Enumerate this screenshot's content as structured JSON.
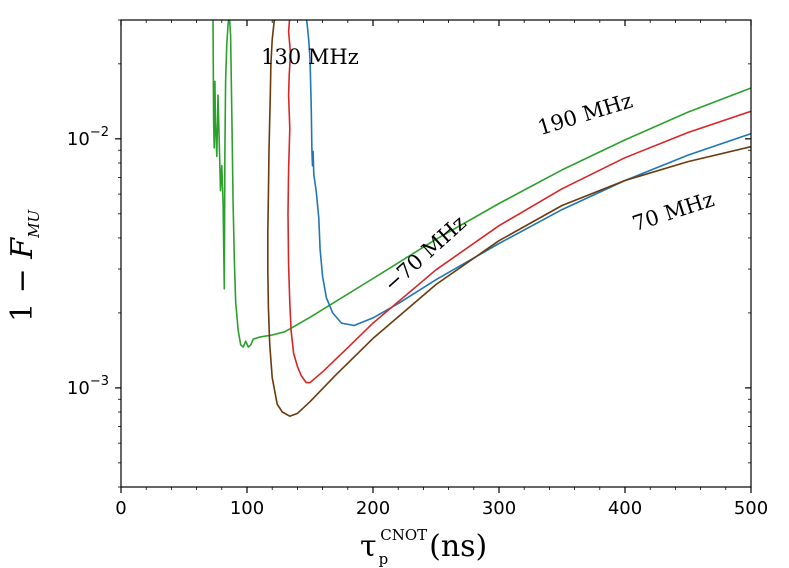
{
  "chart_data": {
    "type": "line",
    "xlabel": {
      "main": "τ",
      "sub": "p",
      "sup": "CNOT",
      "unit": "(ns)"
    },
    "ylabel": {
      "prefix": "1 − ",
      "var": "F",
      "sub": "MU"
    },
    "xlim": [
      0,
      500
    ],
    "ylim": [
      0.0004,
      0.03
    ],
    "yscale": "log",
    "x_ticks": [
      0,
      100,
      200,
      300,
      400,
      500
    ],
    "x_tick_labels": [
      "0",
      "100",
      "200",
      "300",
      "400",
      "500"
    ],
    "y_ticks": [
      0.001,
      0.01
    ],
    "y_tick_labels": [
      {
        "base": "10",
        "exp": "−3"
      },
      {
        "base": "10",
        "exp": "−2"
      }
    ],
    "grid": false,
    "series": [
      {
        "name": "190 MHz",
        "color": "#2ca02c",
        "label_at": [
          370,
          0.0118
        ],
        "label_rotation": -17,
        "points": [
          [
            73,
            0.031
          ],
          [
            73.5,
            0.012
          ],
          [
            74,
            0.0092
          ],
          [
            74.5,
            0.017
          ],
          [
            75,
            0.0115
          ],
          [
            76,
            0.0085
          ],
          [
            77,
            0.015
          ],
          [
            78,
            0.0095
          ],
          [
            79,
            0.0062
          ],
          [
            80,
            0.0078
          ],
          [
            81,
            0.0055
          ],
          [
            82,
            0.0025
          ],
          [
            82.5,
            0.009
          ],
          [
            83,
            0.017
          ],
          [
            84,
            0.024
          ],
          [
            85,
            0.029
          ],
          [
            86,
            0.031
          ],
          [
            87,
            0.026
          ],
          [
            88,
            0.012
          ],
          [
            89,
            0.0055
          ],
          [
            90,
            0.0032
          ],
          [
            91,
            0.0022
          ],
          [
            93,
            0.0017
          ],
          [
            95,
            0.00149
          ],
          [
            97,
            0.00146
          ],
          [
            99,
            0.00154
          ],
          [
            101,
            0.00146
          ],
          [
            103,
            0.00149
          ],
          [
            105,
            0.00157
          ],
          [
            110,
            0.0016
          ],
          [
            120,
            0.00163
          ],
          [
            130,
            0.00168
          ],
          [
            150,
            0.00192
          ],
          [
            200,
            0.00275
          ],
          [
            250,
            0.00395
          ],
          [
            300,
            0.0055
          ],
          [
            350,
            0.0075
          ],
          [
            400,
            0.0099
          ],
          [
            450,
            0.0128
          ],
          [
            500,
            0.016
          ]
        ]
      },
      {
        "name": "130 MHz",
        "color": "#1f77b4",
        "label_at": [
          150,
          0.02
        ],
        "label_rotation": 0,
        "points": [
          [
            147,
            0.031
          ],
          [
            148,
            0.028
          ],
          [
            149,
            0.025
          ],
          [
            150,
            0.021
          ],
          [
            150.5,
            0.017
          ],
          [
            151,
            0.013
          ],
          [
            151.5,
            0.009
          ],
          [
            152,
            0.0078
          ],
          [
            152.5,
            0.0089
          ],
          [
            153,
            0.0072
          ],
          [
            155,
            0.0061
          ],
          [
            157,
            0.0048
          ],
          [
            158,
            0.0036
          ],
          [
            160,
            0.0028
          ],
          [
            163,
            0.0023
          ],
          [
            168,
            0.002
          ],
          [
            175,
            0.00182
          ],
          [
            185,
            0.00178
          ],
          [
            200,
            0.00191
          ],
          [
            220,
            0.00218
          ],
          [
            250,
            0.00272
          ],
          [
            300,
            0.0038
          ],
          [
            350,
            0.0052
          ],
          [
            400,
            0.0068
          ],
          [
            450,
            0.0086
          ],
          [
            500,
            0.0105
          ]
        ]
      },
      {
        "name": "−70 MHz",
        "color": "#d62728",
        "label_at": [
          245,
          0.0033
        ],
        "label_rotation": -42,
        "points": [
          [
            134,
            0.031
          ],
          [
            133,
            0.027
          ],
          [
            134.5,
            0.022
          ],
          [
            133.5,
            0.018
          ],
          [
            133,
            0.015
          ],
          [
            134,
            0.011
          ],
          [
            133,
            0.0075
          ],
          [
            132.5,
            0.005
          ],
          [
            133,
            0.0031
          ],
          [
            134,
            0.0022
          ],
          [
            135,
            0.0017
          ],
          [
            137,
            0.00138
          ],
          [
            140,
            0.00122
          ],
          [
            143,
            0.00112
          ],
          [
            147,
            0.00105
          ],
          [
            150,
            0.00105
          ],
          [
            160,
            0.00116
          ],
          [
            180,
            0.00145
          ],
          [
            200,
            0.00182
          ],
          [
            250,
            0.00298
          ],
          [
            300,
            0.00448
          ],
          [
            350,
            0.0063
          ],
          [
            400,
            0.0084
          ],
          [
            450,
            0.0106
          ],
          [
            500,
            0.0129
          ]
        ]
      },
      {
        "name": "70 MHz",
        "color": "#6b3a0a",
        "label_at": [
          440,
          0.0048
        ],
        "label_rotation": -18,
        "points": [
          [
            122,
            0.031
          ],
          [
            121,
            0.028
          ],
          [
            120,
            0.025
          ],
          [
            119,
            0.02
          ],
          [
            118.5,
            0.015
          ],
          [
            117.5,
            0.009
          ],
          [
            117,
            0.006
          ],
          [
            116.5,
            0.0042
          ],
          [
            116.5,
            0.003
          ],
          [
            117,
            0.0021
          ],
          [
            118,
            0.0015
          ],
          [
            120,
            0.0011
          ],
          [
            124,
            0.00086
          ],
          [
            128,
            0.0008
          ],
          [
            134,
            0.00077
          ],
          [
            140,
            0.00079
          ],
          [
            150,
            0.00088
          ],
          [
            170,
            0.00112
          ],
          [
            200,
            0.00158
          ],
          [
            250,
            0.0026
          ],
          [
            300,
            0.0039
          ],
          [
            350,
            0.0054
          ],
          [
            400,
            0.0068
          ],
          [
            450,
            0.0081
          ],
          [
            500,
            0.0093
          ]
        ]
      }
    ]
  }
}
